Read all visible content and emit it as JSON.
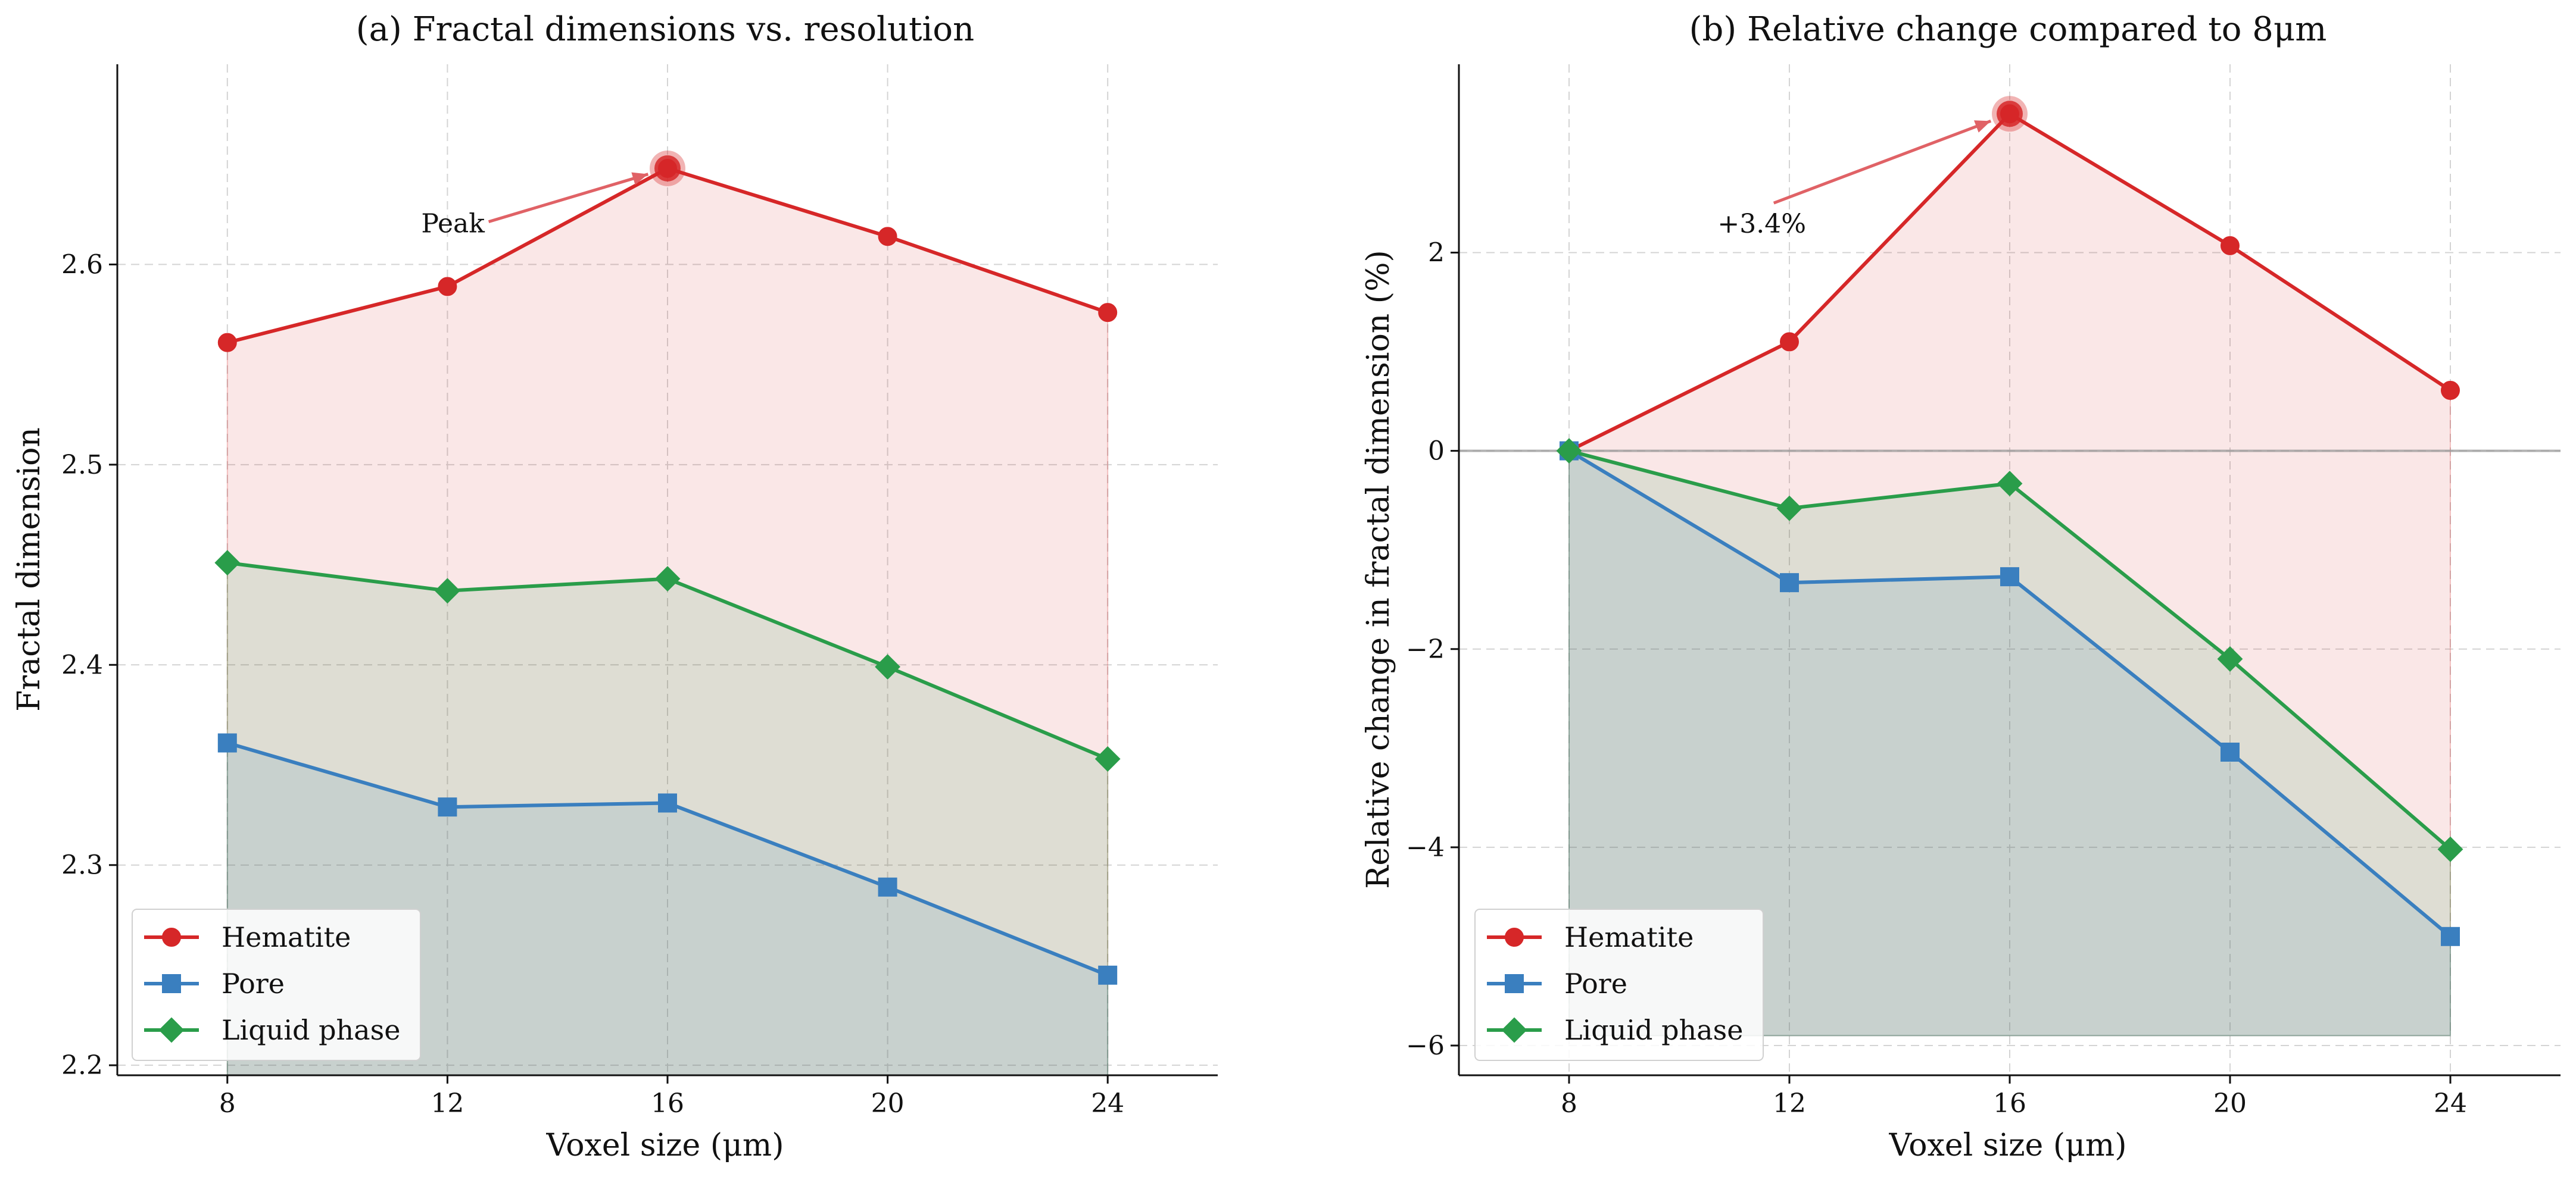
{
  "chart_data": [
    {
      "id": "a",
      "type": "line",
      "title": "(a) Fractal dimensions vs. resolution",
      "xlabel": "Voxel size (μm)",
      "ylabel": "Fractal dimension",
      "x": [
        8,
        12,
        16,
        20,
        24
      ],
      "xlim": [
        6,
        26
      ],
      "ylim": [
        2.195,
        2.7
      ],
      "xticks": [
        8,
        12,
        16,
        20,
        24
      ],
      "yticks": [
        2.2,
        2.3,
        2.4,
        2.5,
        2.6
      ],
      "ytick_labels": [
        "2.2",
        "2.3",
        "2.4",
        "2.5",
        "2.6"
      ],
      "fill_base": 2.195,
      "grid": true,
      "legend": "lower-left",
      "series": [
        {
          "name": "Hematite",
          "values": [
            2.561,
            2.589,
            2.648,
            2.614,
            2.576
          ],
          "color": "#d62728",
          "marker": "circle"
        },
        {
          "name": "Pore",
          "values": [
            2.361,
            2.329,
            2.331,
            2.289,
            2.245
          ],
          "color": "#3a7fbf",
          "marker": "square"
        },
        {
          "name": "Liquid phase",
          "values": [
            2.451,
            2.437,
            2.443,
            2.399,
            2.353
          ],
          "color": "#2a9d4a",
          "marker": "diamond"
        }
      ],
      "annotation": {
        "text": "Peak",
        "series": 0,
        "x": 16,
        "y": 2.648,
        "text_x": 12.1,
        "text_y": 2.616
      }
    },
    {
      "id": "b",
      "type": "line",
      "title": "(b) Relative change compared to 8μm",
      "xlabel": "Voxel size (μm)",
      "ylabel": "Relative change in fractal dimension (%)",
      "x": [
        8,
        12,
        16,
        20,
        24
      ],
      "xlim": [
        6,
        26
      ],
      "ylim": [
        -6.3,
        3.9
      ],
      "xticks": [
        8,
        12,
        16,
        20,
        24
      ],
      "yticks": [
        -6,
        -4,
        -2,
        0,
        2
      ],
      "ytick_labels": [
        "−6",
        "−4",
        "−2",
        "0",
        "2"
      ],
      "fill_base": -5.9,
      "grid": true,
      "legend": "lower-left",
      "zero_line": true,
      "series": [
        {
          "name": "Hematite",
          "values": [
            0,
            1.1,
            3.4,
            2.07,
            0.61
          ],
          "color": "#d62728",
          "marker": "circle"
        },
        {
          "name": "Pore",
          "values": [
            0,
            -1.33,
            -1.27,
            -3.04,
            -4.9
          ],
          "color": "#3a7fbf",
          "marker": "square"
        },
        {
          "name": "Liquid phase",
          "values": [
            0,
            -0.58,
            -0.33,
            -2.1,
            -4.02
          ],
          "color": "#2a9d4a",
          "marker": "diamond"
        }
      ],
      "annotation": {
        "text": "+3.4%",
        "series": 0,
        "x": 16,
        "y": 3.4,
        "text_x": 11.5,
        "text_y": 2.2
      }
    }
  ]
}
